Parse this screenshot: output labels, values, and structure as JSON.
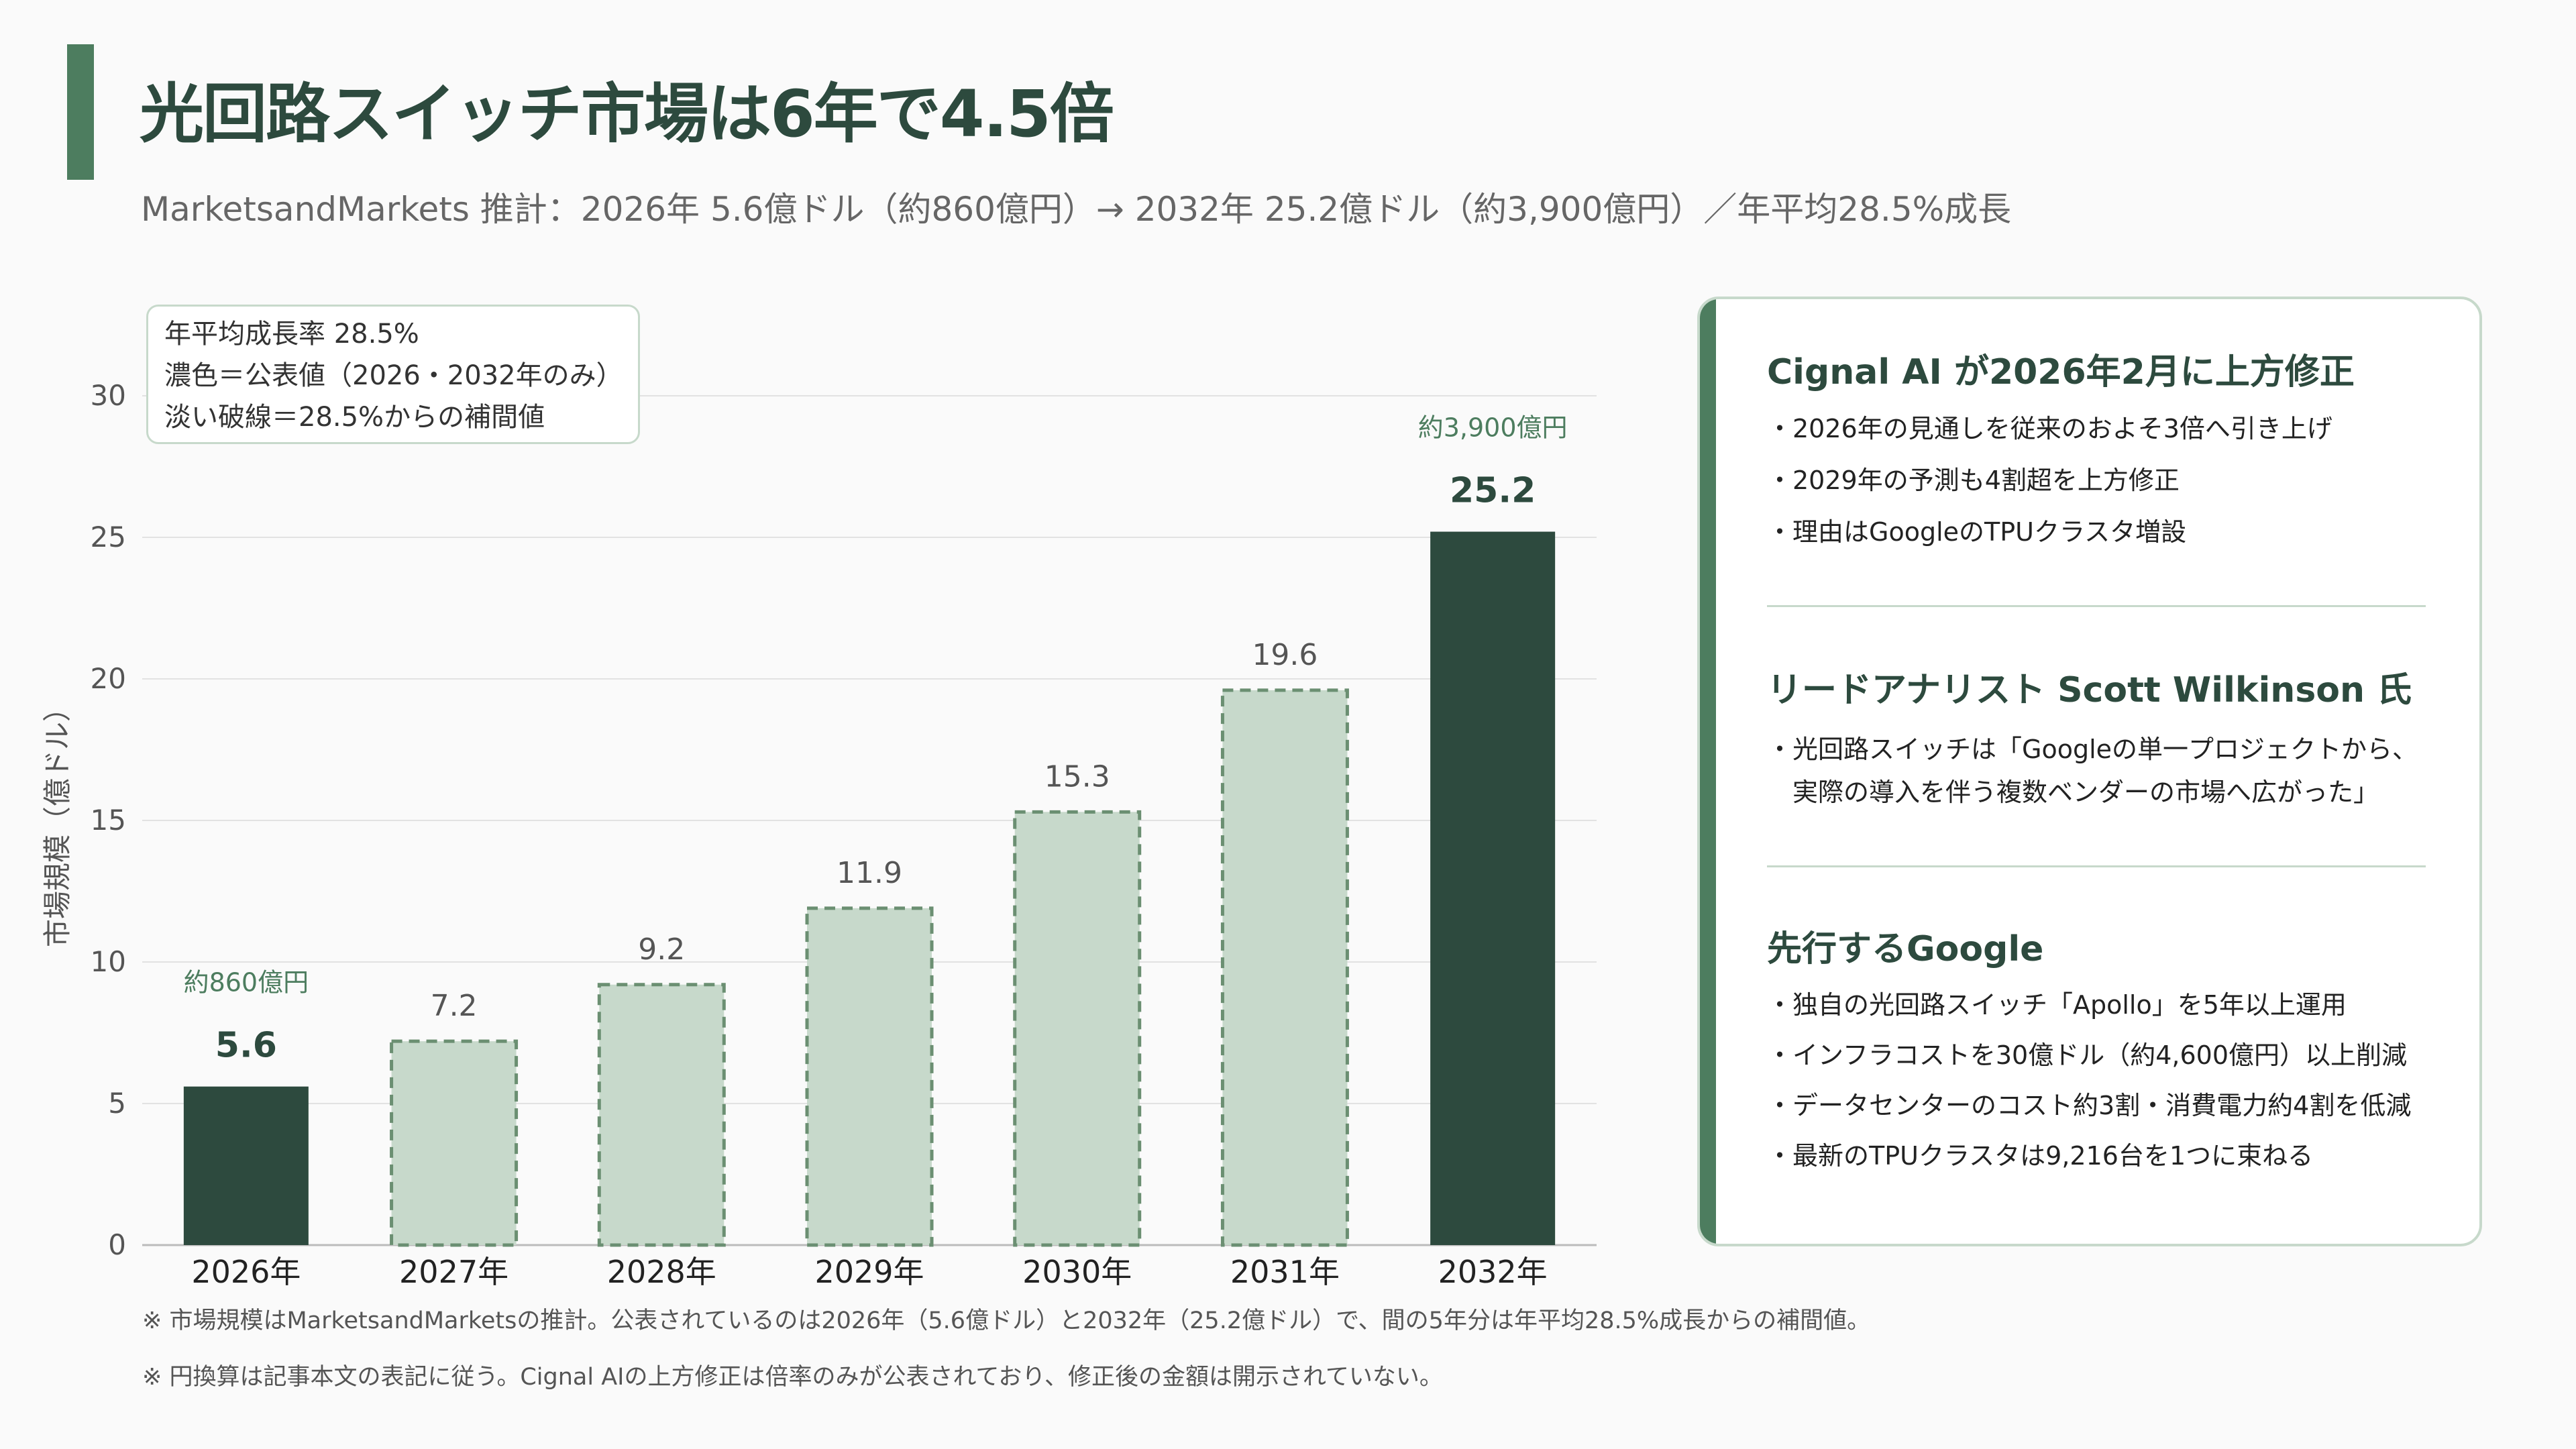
{
  "header": {
    "title": "光回路スイッチ市場は6年で4.5倍",
    "subtitle": "MarketsandMarkets 推計：2026年 5.6億ドル（約860億円）→ 2032年 25.2億ドル（約3,900億円）／年平均28.5%成長"
  },
  "legend": {
    "lines": [
      "年平均成長率 28.5%",
      "濃色＝公表値（2026・2032年のみ）",
      "淡い破線＝28.5%からの補間値"
    ]
  },
  "chart_data": {
    "type": "bar",
    "categories": [
      "2026年",
      "2027年",
      "2028年",
      "2029年",
      "2030年",
      "2031年",
      "2032年"
    ],
    "values": [
      5.6,
      7.2,
      9.2,
      11.9,
      15.3,
      19.6,
      25.2
    ],
    "value_labels": [
      "5.6",
      "7.2",
      "9.2",
      "11.9",
      "15.3",
      "19.6",
      "25.2"
    ],
    "published": [
      true,
      false,
      false,
      false,
      false,
      false,
      true
    ],
    "yen_labels": [
      "約860億円",
      "",
      "",
      "",
      "",
      "",
      "約3,900億円"
    ],
    "ylabel": "市場規模（億ドル）",
    "ylim": [
      0,
      30
    ],
    "yticks": [
      0,
      5,
      10,
      15,
      20,
      25,
      30
    ],
    "grid": true,
    "colors": {
      "published": "#2d4a3e",
      "interpolated": "#c7d9cb",
      "interpolated_border": "#6b8f72"
    }
  },
  "panel": {
    "sections": [
      {
        "heading": "Cignal AI が2026年2月に上方修正",
        "items": [
          "・2026年の見通しを従来のおよそ3倍へ引き上げ",
          "・2029年の予測も4割超を上方修正",
          "・理由はGoogleのTPUクラスタ増設"
        ]
      },
      {
        "heading": "リードアナリスト Scott Wilkinson 氏",
        "items": [
          "・光回路スイッチは「Googleの単一プロジェクトから、",
          "　実際の導入を伴う複数ベンダーの市場へ広がった」"
        ]
      },
      {
        "heading": "先行するGoogle",
        "items": [
          "・独自の光回路スイッチ「Apollo」を5年以上運用",
          "・インフラコストを30億ドル（約4,600億円）以上削減",
          "・データセンターのコスト約3割・消費電力約4割を低減",
          "・最新のTPUクラスタは9,216台を1つに束ねる"
        ]
      }
    ]
  },
  "notes": [
    "※ 市場規模はMarketsandMarketsの推計。公表されているのは2026年（5.6億ドル）と2032年（25.2億ドル）で、間の5年分は年平均28.5%成長からの補間値。",
    "※ 円換算は記事本文の表記に従う。Cignal AIの上方修正は倍率のみが公表されており、修正後の金額は開示されていない。"
  ]
}
